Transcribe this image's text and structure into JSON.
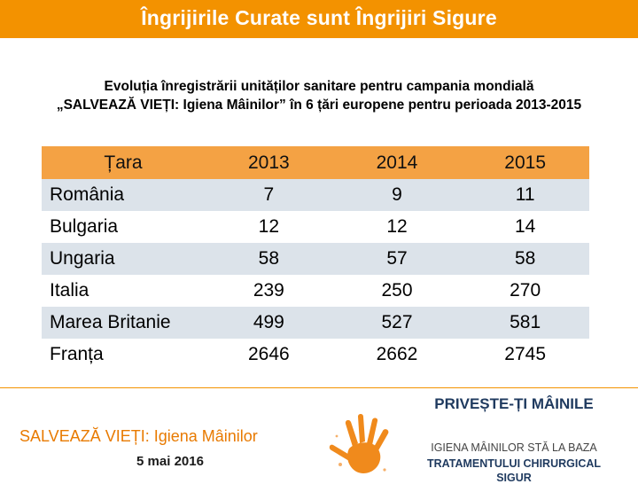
{
  "header": {
    "title": "Îngrijirile Curate sunt Îngrijiri Sigure"
  },
  "subtitle": {
    "line1": "Evoluția înregistrării unităților sanitare pentru campania mondială",
    "line2": "„SALVEAZĂ VIEȚI: Igiena Mâinilor” în 6 țări europene pentru perioada 2013-2015"
  },
  "table": {
    "columns": [
      "Țara",
      "2013",
      "2014",
      "2015"
    ],
    "rows": [
      {
        "country": "România",
        "y2013": "7",
        "y2014": "9",
        "y2015": "11"
      },
      {
        "country": "Bulgaria",
        "y2013": "12",
        "y2014": "12",
        "y2015": "14"
      },
      {
        "country": "Ungaria",
        "y2013": "58",
        "y2014": "57",
        "y2015": "58"
      },
      {
        "country": "Italia",
        "y2013": "239",
        "y2014": "250",
        "y2015": "270"
      },
      {
        "country": "Marea Britanie",
        "y2013": "499",
        "y2014": "527",
        "y2015": "581"
      },
      {
        "country": "Franța",
        "y2013": "2646",
        "y2014": "2662",
        "y2015": "2745"
      }
    ]
  },
  "footer": {
    "left_title": "SALVEAZĂ VIEȚI: Igiena Mâinilor",
    "date": "5 mai 2016",
    "right_title": "PRIVEȘTE-ȚI MÂINILE",
    "right_line1": "IGIENA MÂINILOR STĂ LA BAZA",
    "right_line2": "TRATAMENTULUI CHIRURGICAL",
    "right_line3": "SIGUR"
  },
  "colors": {
    "accent": "#f39200",
    "header_row": "#f4a244",
    "stripe": "#dce3ea",
    "navy": "#1f3a5f"
  }
}
